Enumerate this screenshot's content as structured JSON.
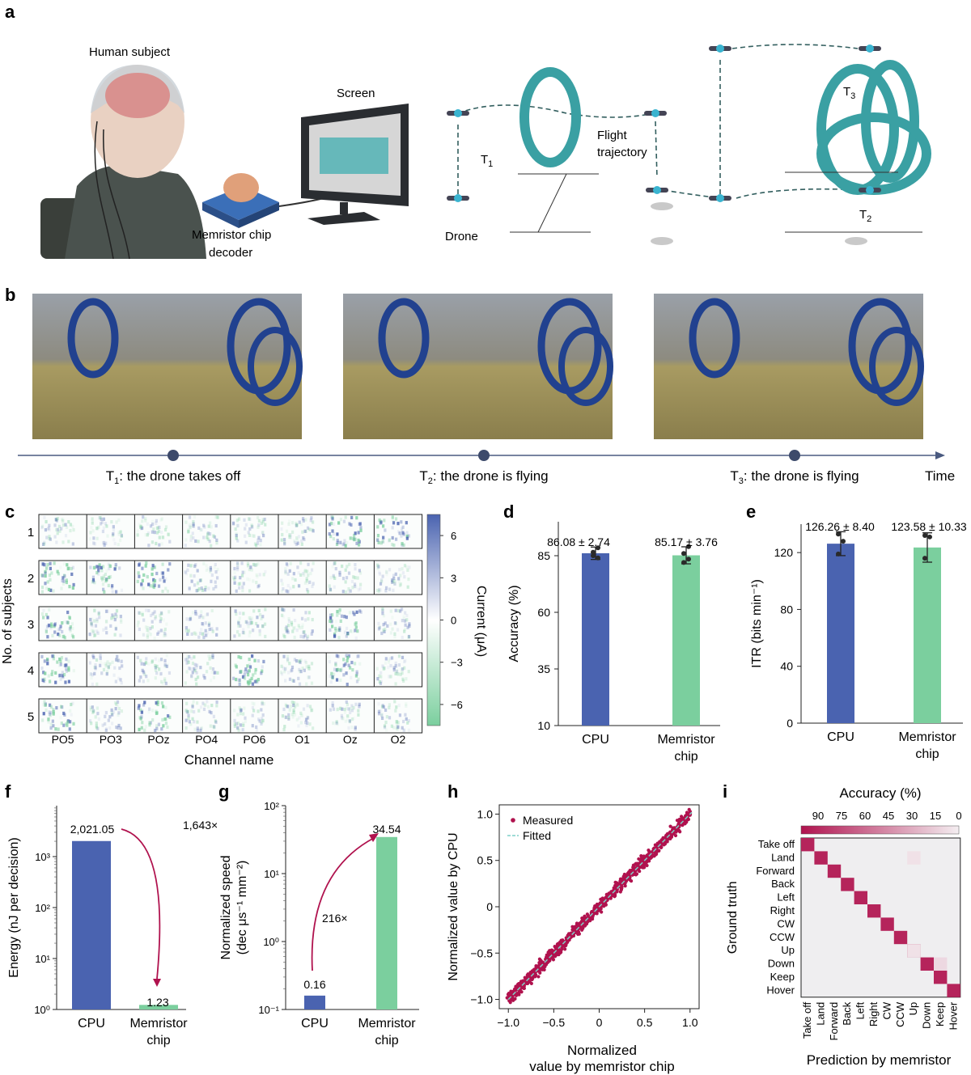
{
  "panels": {
    "a": {
      "letter": "a",
      "human_subject": "Human subject",
      "screen": "Screen",
      "memristor_line1": "Memristor chip",
      "memristor_line2": "decoder",
      "drone": "Drone",
      "flight_line1": "Flight",
      "flight_line2": "trajectory",
      "t1": "T",
      "t1_sub": "1",
      "t2": "T",
      "t2_sub": "2",
      "t3": "T",
      "t3_sub": "3"
    },
    "b": {
      "letter": "b",
      "time_label": "Time",
      "captions": [
        {
          "pre": "T",
          "sub": "1",
          "post": ": the drone takes off"
        },
        {
          "pre": "T",
          "sub": "2",
          "post": ": the drone is flying"
        },
        {
          "pre": "T",
          "sub": "3",
          "post": ": the drone is flying"
        }
      ]
    },
    "c": {
      "letter": "c",
      "ylabel": "No. of subjects",
      "xlabel": "Channel name",
      "cbar_label": "Current (μA)"
    },
    "d": {
      "letter": "d"
    },
    "e": {
      "letter": "e"
    },
    "f": {
      "letter": "f",
      "fold": "1,643×"
    },
    "g": {
      "letter": "g",
      "fold": "216×"
    },
    "h": {
      "letter": "h"
    },
    "i": {
      "letter": "i"
    }
  },
  "colors": {
    "cpu": "#4a63b0",
    "memristor": "#7bcf9e",
    "accent": "#b0124e",
    "heat_low": "#7bcf9e",
    "heat_high": "#4a63b0"
  },
  "chart_data": [
    {
      "id": "c",
      "type": "heatmap",
      "rows": [
        "1",
        "2",
        "3",
        "4",
        "5"
      ],
      "columns": [
        "PO5",
        "PO3",
        "POz",
        "PO4",
        "PO6",
        "O1",
        "Oz",
        "O2"
      ],
      "colorbar_ticks": [
        "6",
        "3",
        "0",
        "−3",
        "−6"
      ],
      "colorbar_range": [
        -7.5,
        7.5
      ],
      "ylabel": "No. of subjects",
      "xlabel": "Channel name",
      "cbar_label": "Current (μA)"
    },
    {
      "id": "d",
      "type": "bar",
      "categories": [
        "CPU",
        "Memristor chip"
      ],
      "values": [
        86.08,
        85.17
      ],
      "errors": [
        2.74,
        3.76
      ],
      "labels": [
        "86.08 ± 2.74",
        "85.17 ± 3.76"
      ],
      "ylabel": "Accuracy (%)",
      "ylim": [
        10,
        100
      ],
      "yticks": [
        10,
        35,
        60,
        85
      ],
      "points": [
        [
          86.5,
          88.5,
          85.0,
          84.0
        ],
        [
          86.0,
          89.0,
          82.0,
          83.5
        ]
      ]
    },
    {
      "id": "e",
      "type": "bar",
      "categories": [
        "CPU",
        "Memristor chip"
      ],
      "values": [
        126.26,
        123.58
      ],
      "errors": [
        8.4,
        10.33
      ],
      "labels": [
        "126.26 ± 8.40",
        "123.58 ± 10.33"
      ],
      "ylabel": "ITR (bits min⁻¹)",
      "ylim": [
        0,
        140
      ],
      "yticks": [
        0,
        40,
        80,
        120
      ],
      "points": [
        [
          133,
          128,
          119
        ],
        [
          132,
          131,
          116
        ]
      ]
    },
    {
      "id": "f",
      "type": "bar",
      "scale": "log",
      "categories": [
        "CPU",
        "Memristor chip"
      ],
      "values": [
        2021.05,
        1.23
      ],
      "labels": [
        "2,021.05",
        "1.23"
      ],
      "ylabel": "Energy (nJ per decision)",
      "ylim": [
        1,
        10000
      ],
      "yticks": [
        "10⁰",
        "10¹",
        "10²",
        "10³"
      ]
    },
    {
      "id": "g",
      "type": "bar",
      "scale": "log",
      "categories": [
        "CPU",
        "Memristor chip"
      ],
      "values": [
        0.16,
        34.54
      ],
      "labels": [
        "0.16",
        "34.54"
      ],
      "ylabel_line1": "Normalized speed",
      "ylabel_line2": "(dec μs⁻¹ mm⁻²)",
      "ylim": [
        0.1,
        100
      ],
      "yticks": [
        "10⁻¹",
        "10⁰",
        "10¹",
        "10²"
      ]
    },
    {
      "id": "h",
      "type": "scatter",
      "xlabel_line1": "Normalized",
      "xlabel_line2": "value by memristor chip",
      "ylabel": "Normalized value by CPU",
      "xlim": [
        -1.1,
        1.1
      ],
      "ylim": [
        -1.1,
        1.1
      ],
      "xticks": [
        "−1.0",
        "−0.5",
        "0",
        "0.5",
        "1.0"
      ],
      "yticks": [
        "−1.0",
        "−0.5",
        "0",
        "0.5",
        "1.0"
      ],
      "legend": [
        "Measured",
        "Fitted"
      ],
      "fit": {
        "slope": 1.0,
        "intercept": 0.0
      },
      "point_count": 1400,
      "spread": 0.06
    },
    {
      "id": "i",
      "type": "heatmap",
      "title": "Accuracy (%)",
      "classes": [
        "Take off",
        "Land",
        "Forward",
        "Back",
        "Left",
        "Right",
        "CW",
        "CCW",
        "Up",
        "Down",
        "Keep",
        "Hover"
      ],
      "ylabel": "Ground truth",
      "xlabel": "Prediction by memristor",
      "cbar_ticks": [
        "90",
        "75",
        "60",
        "45",
        "30",
        "15",
        "0"
      ],
      "diagonal": 92,
      "offdiag": [
        [
          1,
          8,
          6
        ],
        [
          8,
          8,
          6
        ],
        [
          9,
          10,
          10
        ]
      ]
    }
  ]
}
